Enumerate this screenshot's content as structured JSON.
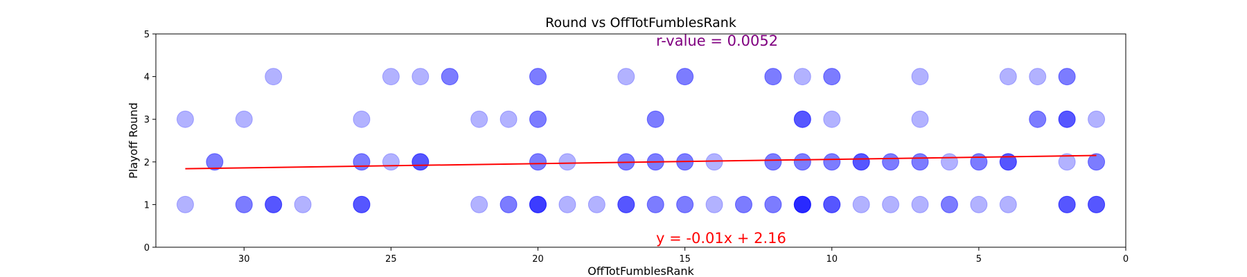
{
  "chart_data": {
    "type": "scatter",
    "title": "Round vs OffTotFumblesRank",
    "xlabel": "OffTotFumblesRank",
    "ylabel": "Playoff Round",
    "xlim": [
      33,
      0
    ],
    "ylim": [
      0,
      5
    ],
    "x_ticks": [
      30,
      25,
      20,
      15,
      10,
      5,
      0
    ],
    "y_ticks": [
      0,
      1,
      2,
      3,
      4,
      5
    ],
    "grid": false,
    "point_color": "#0000ff",
    "point_alpha": 0.3,
    "points": [
      [
        32,
        1
      ],
      [
        32,
        3
      ],
      [
        31,
        2
      ],
      [
        31,
        2
      ],
      [
        30,
        1
      ],
      [
        30,
        1
      ],
      [
        30,
        3
      ],
      [
        29,
        1
      ],
      [
        29,
        1
      ],
      [
        29,
        1
      ],
      [
        29,
        4
      ],
      [
        28,
        1
      ],
      [
        26,
        1
      ],
      [
        26,
        1
      ],
      [
        26,
        1
      ],
      [
        26,
        2
      ],
      [
        26,
        2
      ],
      [
        26,
        3
      ],
      [
        25,
        2
      ],
      [
        25,
        4
      ],
      [
        24,
        2
      ],
      [
        24,
        2
      ],
      [
        24,
        2
      ],
      [
        24,
        4
      ],
      [
        23,
        4
      ],
      [
        23,
        4
      ],
      [
        22,
        1
      ],
      [
        22,
        3
      ],
      [
        21,
        1
      ],
      [
        21,
        1
      ],
      [
        21,
        3
      ],
      [
        20,
        1
      ],
      [
        20,
        1
      ],
      [
        20,
        1
      ],
      [
        20,
        1
      ],
      [
        20,
        2
      ],
      [
        20,
        2
      ],
      [
        20,
        3
      ],
      [
        20,
        3
      ],
      [
        20,
        4
      ],
      [
        20,
        4
      ],
      [
        19,
        1
      ],
      [
        19,
        2
      ],
      [
        18,
        1
      ],
      [
        17,
        1
      ],
      [
        17,
        1
      ],
      [
        17,
        1
      ],
      [
        17,
        2
      ],
      [
        17,
        2
      ],
      [
        17,
        4
      ],
      [
        16,
        1
      ],
      [
        16,
        1
      ],
      [
        16,
        2
      ],
      [
        16,
        2
      ],
      [
        16,
        3
      ],
      [
        16,
        3
      ],
      [
        15,
        1
      ],
      [
        15,
        1
      ],
      [
        15,
        2
      ],
      [
        15,
        2
      ],
      [
        15,
        4
      ],
      [
        15,
        4
      ],
      [
        14,
        1
      ],
      [
        14,
        2
      ],
      [
        13,
        1
      ],
      [
        13,
        1
      ],
      [
        12,
        1
      ],
      [
        12,
        1
      ],
      [
        12,
        2
      ],
      [
        12,
        2
      ],
      [
        12,
        4
      ],
      [
        12,
        4
      ],
      [
        11,
        1
      ],
      [
        11,
        1
      ],
      [
        11,
        1
      ],
      [
        11,
        1
      ],
      [
        11,
        1
      ],
      [
        11,
        2
      ],
      [
        11,
        2
      ],
      [
        11,
        3
      ],
      [
        11,
        3
      ],
      [
        11,
        3
      ],
      [
        11,
        4
      ],
      [
        10,
        1
      ],
      [
        10,
        1
      ],
      [
        10,
        1
      ],
      [
        10,
        2
      ],
      [
        10,
        2
      ],
      [
        10,
        3
      ],
      [
        10,
        4
      ],
      [
        10,
        4
      ],
      [
        9,
        1
      ],
      [
        9,
        2
      ],
      [
        9,
        2
      ],
      [
        9,
        2
      ],
      [
        8,
        1
      ],
      [
        8,
        2
      ],
      [
        8,
        2
      ],
      [
        7,
        1
      ],
      [
        7,
        2
      ],
      [
        7,
        2
      ],
      [
        7,
        3
      ],
      [
        7,
        4
      ],
      [
        6,
        1
      ],
      [
        6,
        1
      ],
      [
        6,
        2
      ],
      [
        5,
        1
      ],
      [
        5,
        2
      ],
      [
        5,
        2
      ],
      [
        4,
        1
      ],
      [
        4,
        2
      ],
      [
        4,
        2
      ],
      [
        4,
        2
      ],
      [
        4,
        4
      ],
      [
        3,
        3
      ],
      [
        3,
        3
      ],
      [
        3,
        4
      ],
      [
        2,
        1
      ],
      [
        2,
        1
      ],
      [
        2,
        1
      ],
      [
        2,
        2
      ],
      [
        2,
        3
      ],
      [
        2,
        3
      ],
      [
        2,
        3
      ],
      [
        2,
        4
      ],
      [
        2,
        4
      ],
      [
        1,
        1
      ],
      [
        1,
        1
      ],
      [
        1,
        1
      ],
      [
        1,
        2
      ],
      [
        1,
        2
      ],
      [
        1,
        3
      ]
    ],
    "regression": {
      "slope": -0.01,
      "intercept": 2.16,
      "x_range": [
        32,
        1
      ],
      "color": "#ff0000",
      "equation_label": "y = -0.01x + 2.16",
      "equation_color": "#ff0000"
    },
    "r_value_label": "r-value = 0.0052",
    "r_value_color": "#800080"
  }
}
